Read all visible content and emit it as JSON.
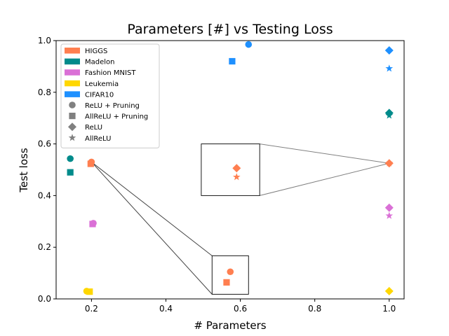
{
  "chart_data": {
    "type": "scatter",
    "title": "Parameters [#] vs Testing Loss",
    "xlabel": "# Parameters",
    "ylabel": "Test loss",
    "xlim": [
      0.105,
      1.04
    ],
    "ylim": [
      0.0,
      1.0
    ],
    "xticks": [
      "0.2",
      "0.4",
      "0.6",
      "0.8",
      "1.0"
    ],
    "xtick_values": [
      0.2,
      0.4,
      0.6,
      0.8,
      1.0
    ],
    "yticks": [
      "0.0",
      "0.2",
      "0.4",
      "0.6",
      "0.8",
      "1.0"
    ],
    "ytick_values": [
      0.0,
      0.2,
      0.4,
      0.6,
      0.8,
      1.0
    ],
    "legend_position": "top-left",
    "datasets": [
      {
        "name": "HIGGS",
        "color": "#FF7F50"
      },
      {
        "name": "Madelon",
        "color": "#008B8B"
      },
      {
        "name": "Fashion MNIST",
        "color": "#DA70D6"
      },
      {
        "name": "Leukemia",
        "color": "#FFD700"
      },
      {
        "name": "CIFAR10",
        "color": "#1E90FF"
      }
    ],
    "methods": [
      {
        "name": "ReLU + Pruning",
        "marker": "circle"
      },
      {
        "name": "AllReLU + Pruning",
        "marker": "square"
      },
      {
        "name": "ReLU",
        "marker": "diamond"
      },
      {
        "name": "AllReLU",
        "marker": "star"
      }
    ],
    "points": [
      {
        "dataset": "HIGGS",
        "method": "ReLU + Pruning",
        "x": 0.2,
        "y": 0.53
      },
      {
        "dataset": "HIGGS",
        "method": "AllReLU + Pruning",
        "x": 0.198,
        "y": 0.523
      },
      {
        "dataset": "HIGGS",
        "method": "ReLU",
        "x": 1.0,
        "y": 0.525
      },
      {
        "dataset": "HIGGS",
        "method": "AllReLU",
        "x": 1.0,
        "y": 0.525
      },
      {
        "dataset": "Madelon",
        "method": "ReLU + Pruning",
        "x": 0.143,
        "y": 0.543
      },
      {
        "dataset": "Madelon",
        "method": "AllReLU + Pruning",
        "x": 0.143,
        "y": 0.49
      },
      {
        "dataset": "Madelon",
        "method": "ReLU",
        "x": 1.0,
        "y": 0.72
      },
      {
        "dataset": "Madelon",
        "method": "AllReLU",
        "x": 1.0,
        "y": 0.71
      },
      {
        "dataset": "Fashion MNIST",
        "method": "ReLU + Pruning",
        "x": 0.205,
        "y": 0.293
      },
      {
        "dataset": "Fashion MNIST",
        "method": "AllReLU + Pruning",
        "x": 0.203,
        "y": 0.29
      },
      {
        "dataset": "Fashion MNIST",
        "method": "ReLU",
        "x": 1.0,
        "y": 0.353
      },
      {
        "dataset": "Fashion MNIST",
        "method": "AllReLU",
        "x": 1.0,
        "y": 0.322
      },
      {
        "dataset": "Leukemia",
        "method": "ReLU + Pruning",
        "x": 0.187,
        "y": 0.03
      },
      {
        "dataset": "Leukemia",
        "method": "AllReLU + Pruning",
        "x": 0.195,
        "y": 0.028
      },
      {
        "dataset": "Leukemia",
        "method": "ReLU",
        "x": 1.0,
        "y": 0.03
      },
      {
        "dataset": "CIFAR10",
        "method": "ReLU + Pruning",
        "x": 0.622,
        "y": 0.985
      },
      {
        "dataset": "CIFAR10",
        "method": "AllReLU + Pruning",
        "x": 0.578,
        "y": 0.92
      },
      {
        "dataset": "CIFAR10",
        "method": "ReLU",
        "x": 1.0,
        "y": 0.962
      },
      {
        "dataset": "CIFAR10",
        "method": "AllReLU",
        "x": 1.0,
        "y": 0.892
      }
    ],
    "insets": [
      {
        "name": "inset-higgs-sparse",
        "bounds": {
          "x0": 0.524,
          "x1": 0.622,
          "y0": 0.018,
          "y1": 0.167
        },
        "connect_to": {
          "x": 0.2,
          "y": 0.53
        },
        "points": [
          {
            "dataset": "HIGGS",
            "method": "ReLU + Pruning",
            "x": 0.573,
            "y": 0.105
          },
          {
            "dataset": "HIGGS",
            "method": "AllReLU + Pruning",
            "x": 0.563,
            "y": 0.064
          }
        ]
      },
      {
        "name": "inset-higgs-dense",
        "bounds": {
          "x0": 0.495,
          "x1": 0.652,
          "y0": 0.4,
          "y1": 0.6
        },
        "connect_to": {
          "x": 1.0,
          "y": 0.525
        },
        "points": [
          {
            "dataset": "HIGGS",
            "method": "ReLU",
            "x": 0.59,
            "y": 0.506
          },
          {
            "dataset": "HIGGS",
            "method": "AllReLU",
            "x": 0.59,
            "y": 0.472
          }
        ]
      }
    ]
  }
}
